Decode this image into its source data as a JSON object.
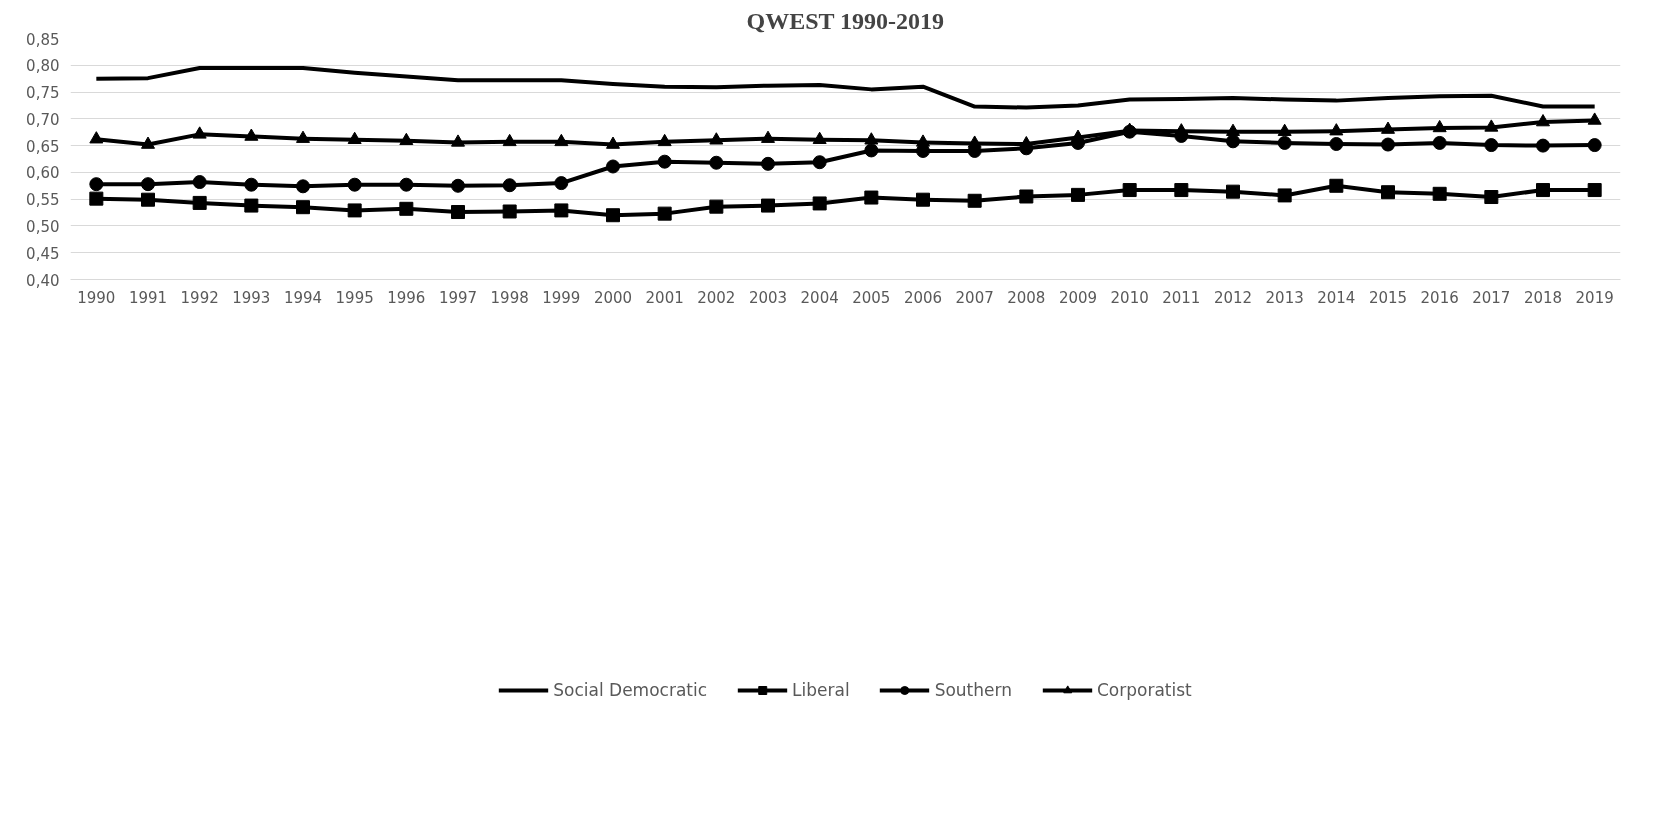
{
  "chart_data": {
    "type": "line",
    "title": "QWEST 1990-2019",
    "categories": [
      "1990",
      "1991",
      "1992",
      "1993",
      "1994",
      "1995",
      "1996",
      "1997",
      "1998",
      "1999",
      "2000",
      "2001",
      "2002",
      "2003",
      "2004",
      "2005",
      "2006",
      "2007",
      "2008",
      "2009",
      "2010",
      "2011",
      "2012",
      "2013",
      "2014",
      "2015",
      "2016",
      "2017",
      "2018",
      "2019"
    ],
    "series": [
      {
        "name": "Social Democratic",
        "color": "#000000",
        "marker": "none",
        "values": [
          0.775,
          0.776,
          0.795,
          0.795,
          0.795,
          0.786,
          0.779,
          0.772,
          0.772,
          0.772,
          0.765,
          0.76,
          0.759,
          0.762,
          0.763,
          0.755,
          0.76,
          0.723,
          0.721,
          0.725,
          0.736,
          0.737,
          0.739,
          0.736,
          0.734,
          0.739,
          0.742,
          0.743,
          0.723,
          0.723
        ]
      },
      {
        "name": "Liberal",
        "color": "#000000",
        "marker": "square",
        "values": [
          0.551,
          0.549,
          0.543,
          0.538,
          0.535,
          0.529,
          0.532,
          0.526,
          0.527,
          0.529,
          0.52,
          0.523,
          0.536,
          0.538,
          0.542,
          0.553,
          0.549,
          0.547,
          0.555,
          0.558,
          0.567,
          0.567,
          0.564,
          0.557,
          0.575,
          0.563,
          0.56,
          0.554,
          0.567,
          0.567
        ]
      },
      {
        "name": "Southern",
        "color": "#000000",
        "marker": "circle",
        "values": [
          0.578,
          0.578,
          0.582,
          0.577,
          0.574,
          0.577,
          0.577,
          0.575,
          0.576,
          0.58,
          0.611,
          0.62,
          0.618,
          0.616,
          0.619,
          0.641,
          0.64,
          0.64,
          0.645,
          0.655,
          0.676,
          0.668,
          0.658,
          0.655,
          0.653,
          0.652,
          0.655,
          0.651,
          0.65,
          0.651
        ]
      },
      {
        "name": "Corporatist",
        "color": "#000000",
        "marker": "triangle",
        "values": [
          0.662,
          0.652,
          0.671,
          0.667,
          0.663,
          0.661,
          0.659,
          0.656,
          0.657,
          0.657,
          0.652,
          0.657,
          0.66,
          0.663,
          0.661,
          0.66,
          0.656,
          0.654,
          0.653,
          0.665,
          0.678,
          0.677,
          0.676,
          0.676,
          0.677,
          0.68,
          0.683,
          0.684,
          0.694,
          0.697
        ]
      }
    ],
    "ylim": [
      0.4,
      0.85
    ],
    "yticks": [
      {
        "value": 0.4,
        "label": "0,40"
      },
      {
        "value": 0.45,
        "label": "0,45"
      },
      {
        "value": 0.5,
        "label": "0,50"
      },
      {
        "value": 0.55,
        "label": "0,55"
      },
      {
        "value": 0.6,
        "label": "0,60"
      },
      {
        "value": 0.65,
        "label": "0,65"
      },
      {
        "value": 0.7,
        "label": "0,70"
      },
      {
        "value": 0.75,
        "label": "0,75"
      },
      {
        "value": 0.8,
        "label": "0,80"
      },
      {
        "value": 0.85,
        "label": "0,85"
      }
    ],
    "grid": "y",
    "legend": "bottom",
    "line_style": "solid"
  }
}
